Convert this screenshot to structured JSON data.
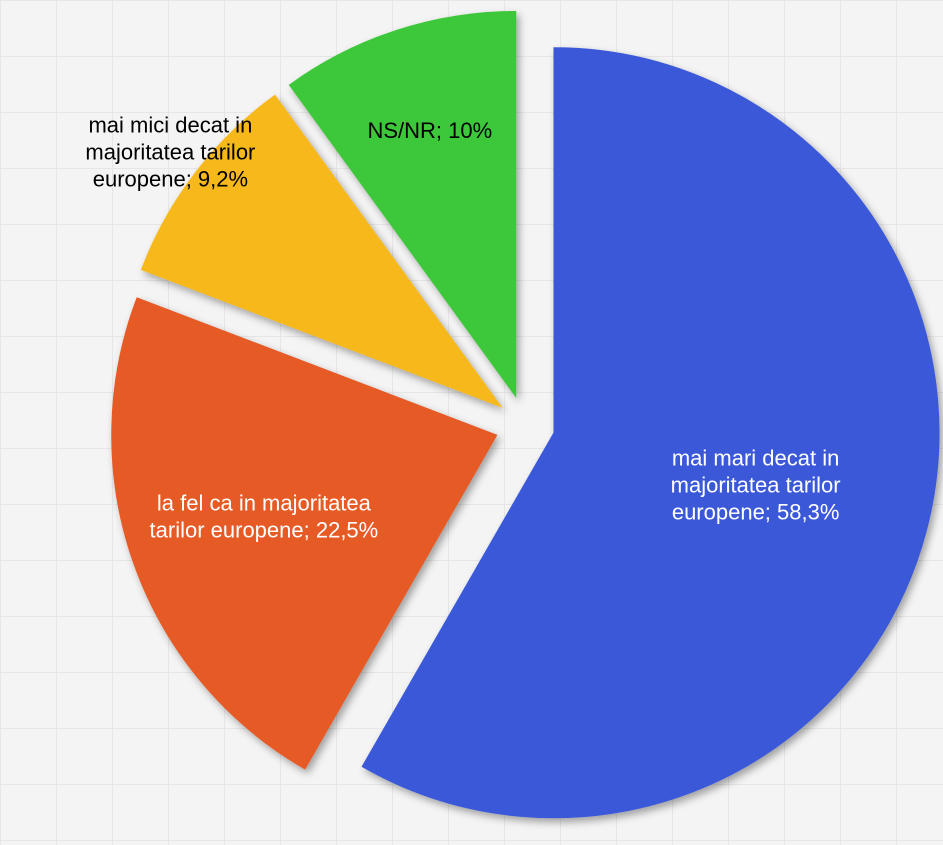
{
  "chart_data": {
    "type": "pie",
    "values": [
      58.3,
      22.5,
      9.2,
      10
    ],
    "value_labels": [
      "mai mari decat in majoritatea tarilor europene; 58,3%",
      "la fel ca in majoritatea tarilor europene; 22,5%",
      "mai mici decat in majoritatea tarilor europene; 9,2%",
      "NS/NR; 10%"
    ],
    "colors": [
      "#3a59d8",
      "#e65a26",
      "#f7b81c",
      "#3dc73a"
    ],
    "label_colors": [
      "#ffffff",
      "#ffffff",
      "#000000",
      "#000000"
    ]
  }
}
